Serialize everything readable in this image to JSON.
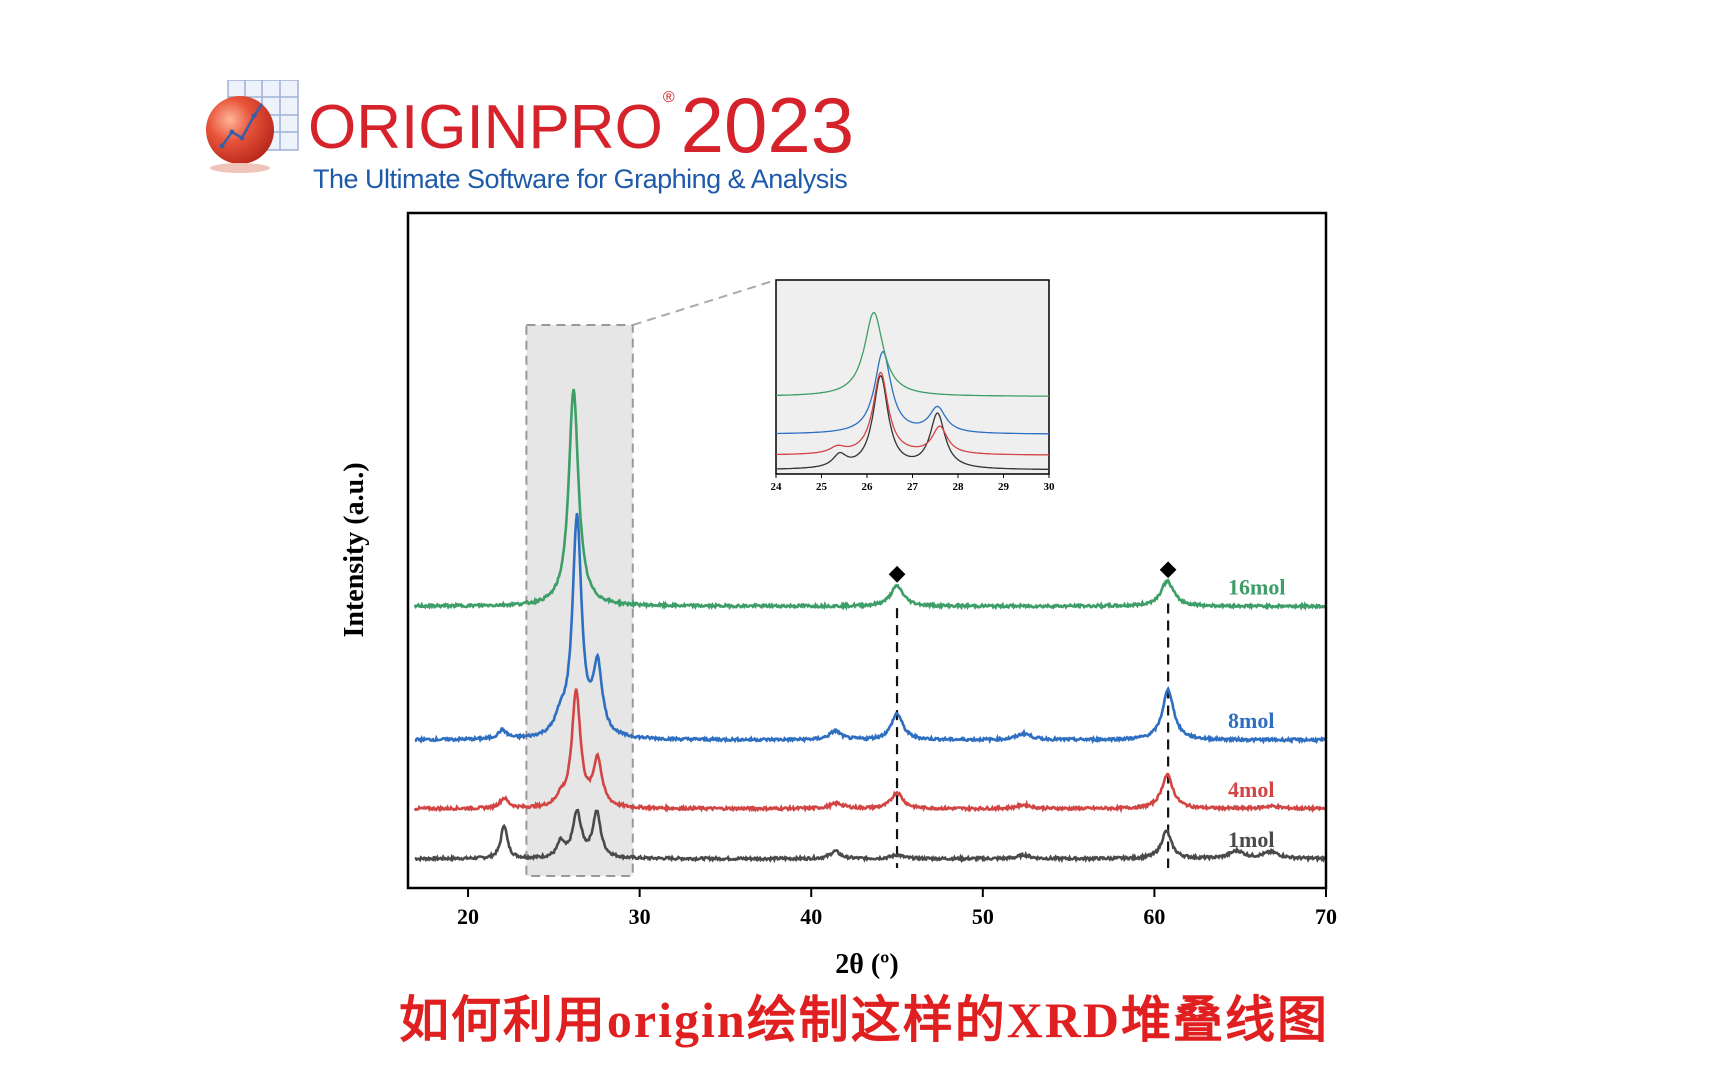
{
  "logo": {
    "brand": "ORIGINPRO",
    "registered": "®",
    "year": "2023",
    "tagline": "The Ultimate Software for Graphing & Analysis",
    "brand_color": "#d6222b",
    "tagline_color": "#1f5aa8",
    "icon": "origin-graph-globe-icon"
  },
  "caption": "如何利用origin绘制这样的XRD堆叠线图",
  "colors": {
    "caption": "#e02020",
    "frame": "#000000",
    "highlight_fill": "#e6e6e6"
  },
  "chart_data": {
    "type": "line",
    "stacked": true,
    "xlabel": "2θ (º)",
    "ylabel": "Intensity (a.u.)",
    "xlim": [
      16.5,
      70
    ],
    "xticks": [
      20,
      30,
      40,
      50,
      60,
      70
    ],
    "y_axis_ticks": false,
    "grid": false,
    "legend": "series labels at right end of each curve",
    "highlight_region": {
      "x": [
        23.4,
        29.6
      ]
    },
    "marker_symbol": "◆",
    "reference_lines": [
      45.0,
      60.8
    ],
    "series": [
      {
        "name": "1mol",
        "color": "#4a4a4a",
        "offset": 0,
        "baseline": 1.0,
        "peaks": [
          [
            22.1,
            27,
            0.22
          ],
          [
            25.4,
            12,
            0.25
          ],
          [
            26.35,
            36,
            0.3
          ],
          [
            27.5,
            36,
            0.28
          ],
          [
            41.4,
            6,
            0.35
          ],
          [
            45.0,
            3,
            0.4
          ],
          [
            52.4,
            3,
            0.4
          ],
          [
            60.7,
            22,
            0.35
          ],
          [
            64.8,
            6,
            0.5
          ],
          [
            66.8,
            5,
            0.6
          ]
        ]
      },
      {
        "name": "4mol",
        "color": "#d24545",
        "offset": 40,
        "baseline": 1.0,
        "peaks": [
          [
            22.1,
            8,
            0.3
          ],
          [
            25.4,
            7,
            0.3
          ],
          [
            26.3,
            93,
            0.3
          ],
          [
            27.55,
            38,
            0.3
          ],
          [
            41.5,
            4,
            0.5
          ],
          [
            45.0,
            13,
            0.4
          ],
          [
            52.4,
            3,
            0.5
          ],
          [
            60.75,
            27,
            0.4
          ],
          [
            66.8,
            2,
            0.6
          ]
        ]
      },
      {
        "name": "8mol",
        "color": "#2f6fc1",
        "offset": 95,
        "baseline": 1.0,
        "peaks": [
          [
            22.0,
            7,
            0.3
          ],
          [
            25.4,
            13,
            0.4
          ],
          [
            26.35,
            175,
            0.32
          ],
          [
            27.55,
            55,
            0.32
          ],
          [
            41.4,
            7,
            0.4
          ],
          [
            45.0,
            21,
            0.4
          ],
          [
            52.4,
            5,
            0.5
          ],
          [
            60.8,
            40,
            0.4
          ]
        ]
      },
      {
        "name": "16mol",
        "color": "#3d9e67",
        "offset": 202,
        "baseline": 1.0,
        "peaks": [
          [
            26.15,
            173,
            0.34
          ],
          [
            45.0,
            16,
            0.45
          ],
          [
            60.75,
            20,
            0.45
          ]
        ]
      }
    ],
    "inset": {
      "xlim": [
        24,
        30
      ],
      "xticks": [
        24,
        25,
        26,
        27,
        28,
        29,
        30
      ],
      "background": "#efefef",
      "series": [
        {
          "name": "1mol",
          "color": "#333333",
          "offset": 0,
          "peaks": [
            [
              25.4,
              12,
              0.18
            ],
            [
              26.3,
              88,
              0.2
            ],
            [
              27.55,
              52,
              0.2
            ]
          ]
        },
        {
          "name": "4mol",
          "color": "#d24545",
          "offset": 14,
          "peaks": [
            [
              25.35,
              6,
              0.2
            ],
            [
              26.3,
              78,
              0.2
            ],
            [
              27.6,
              26,
              0.2
            ]
          ]
        },
        {
          "name": "8mol",
          "color": "#2f6fc1",
          "offset": 34,
          "peaks": [
            [
              26.35,
              78,
              0.22
            ],
            [
              27.55,
              24,
              0.22
            ]
          ]
        },
        {
          "name": "16mol",
          "color": "#3d9e67",
          "offset": 70,
          "peaks": [
            [
              26.15,
              80,
              0.25
            ]
          ]
        }
      ]
    }
  }
}
